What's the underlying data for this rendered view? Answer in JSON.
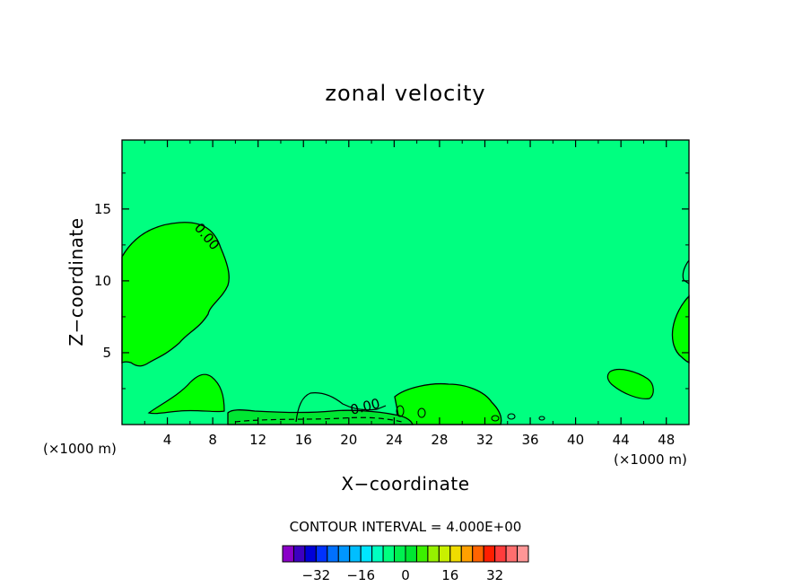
{
  "chart_data": {
    "type": "heatmap",
    "title": "zonal velocity",
    "xlabel": "X−coordinate",
    "ylabel": "Z−coordinate",
    "x_unit_left": "(×1000 m)",
    "x_unit_right": "(×1000 m)",
    "xlim": [
      0,
      50
    ],
    "ylim": [
      0,
      19.8
    ],
    "x_ticks": [
      "4",
      "8",
      "12",
      "16",
      "20",
      "24",
      "28",
      "32",
      "36",
      "40",
      "44",
      "48"
    ],
    "x_tick_values": [
      4,
      8,
      12,
      16,
      20,
      24,
      28,
      32,
      36,
      40,
      44,
      48
    ],
    "y_ticks": [
      "5",
      "10",
      "15"
    ],
    "y_tick_values": [
      5,
      10,
      15
    ],
    "background_level": -0.5,
    "contour_interval_text": "CONTOUR INTERVAL = 4.000E+00",
    "contour_interval": 4.0,
    "contour_labels": [
      "0.00",
      "0.00"
    ],
    "colorbar": {
      "levels": [
        -36,
        -32,
        -28,
        -24,
        -20,
        -16,
        -12,
        -8,
        -4,
        0,
        4,
        8,
        12,
        16,
        20,
        24,
        28,
        32,
        36
      ],
      "colors": [
        "#8a00c8",
        "#3c00c0",
        "#0000d8",
        "#0032ff",
        "#0070ff",
        "#0096ff",
        "#00beff",
        "#00e6ff",
        "#00ffc0",
        "#00ff80",
        "#00f050",
        "#00e632",
        "#3cf000",
        "#96f000",
        "#c8f000",
        "#f0dc00",
        "#ffa000",
        "#ff6400",
        "#ff1e00",
        "#ff3c3c",
        "#ff6e6e",
        "#ff9696"
      ],
      "tick_labels": [
        "−32",
        "−16",
        "0",
        "16",
        "32"
      ],
      "tick_values": [
        -32,
        -16,
        0,
        16,
        32
      ]
    },
    "regions": [
      {
        "name": "positive-region-left",
        "level": 0,
        "color": "#00ff00"
      },
      {
        "name": "positive-region-center",
        "level": 0,
        "color": "#00ff00"
      },
      {
        "name": "negative-region-bottom",
        "level": -4,
        "color": "#00e632"
      },
      {
        "name": "positive-region-right",
        "level": 0,
        "color": "#00ff00"
      }
    ]
  }
}
